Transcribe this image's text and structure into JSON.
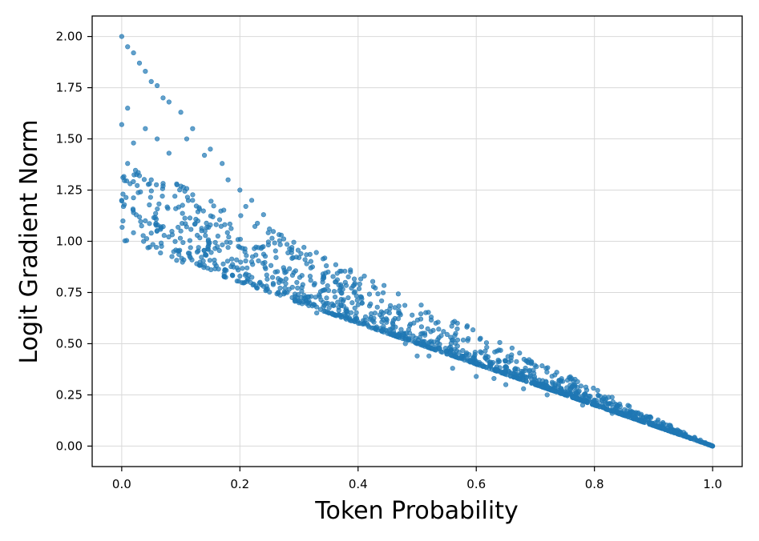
{
  "chart_data": {
    "type": "scatter",
    "title": "",
    "xlabel": "Token Probability",
    "ylabel": "Logit Gradient Norm",
    "xlim": [
      -0.05,
      1.05
    ],
    "ylim": [
      -0.1,
      2.1
    ],
    "xticks": [
      "0.0",
      "0.2",
      "0.4",
      "0.6",
      "0.8",
      "1.0"
    ],
    "yticks": [
      "0.00",
      "0.25",
      "0.50",
      "0.75",
      "1.00",
      "1.25",
      "1.50",
      "1.75",
      "2.00"
    ],
    "grid": true,
    "color": "#1f77b4",
    "series": [
      {
        "description_of_shape": "points lie between the curves y = 1 - p and y = sqrt(2)*(1 - p); densest near the lower bound for large p, forming discrete arcs",
        "points": [
          [
            0.0,
            2.0
          ],
          [
            0.0,
            1.57
          ],
          [
            0.0,
            1.2
          ],
          [
            0.01,
            1.95
          ],
          [
            0.01,
            1.65
          ],
          [
            0.01,
            1.38
          ],
          [
            0.02,
            1.92
          ],
          [
            0.02,
            1.48
          ],
          [
            0.02,
            1.14
          ],
          [
            0.03,
            1.87
          ],
          [
            0.03,
            1.32
          ],
          [
            0.04,
            1.83
          ],
          [
            0.04,
            1.55
          ],
          [
            0.04,
            1.1
          ],
          [
            0.05,
            1.78
          ],
          [
            0.05,
            1.3
          ],
          [
            0.05,
            1.04
          ],
          [
            0.06,
            1.76
          ],
          [
            0.06,
            1.5
          ],
          [
            0.07,
            1.7
          ],
          [
            0.07,
            1.27
          ],
          [
            0.08,
            1.68
          ],
          [
            0.08,
            1.43
          ],
          [
            0.09,
            1.22
          ],
          [
            0.1,
            1.63
          ],
          [
            0.1,
            1.05
          ],
          [
            0.11,
            1.5
          ],
          [
            0.12,
            1.55
          ],
          [
            0.12,
            1.2
          ],
          [
            0.13,
            0.97
          ],
          [
            0.14,
            1.42
          ],
          [
            0.15,
            1.45
          ],
          [
            0.15,
            1.08
          ],
          [
            0.16,
            0.88
          ],
          [
            0.17,
            1.38
          ],
          [
            0.18,
            1.3
          ],
          [
            0.18,
            0.97
          ],
          [
            0.2,
            1.25
          ],
          [
            0.2,
            0.83
          ],
          [
            0.21,
            1.17
          ],
          [
            0.22,
            1.2
          ],
          [
            0.22,
            0.9
          ],
          [
            0.24,
            1.13
          ],
          [
            0.24,
            0.78
          ],
          [
            0.25,
            1.06
          ],
          [
            0.26,
            0.85
          ],
          [
            0.27,
            1.03
          ],
          [
            0.28,
            0.75
          ],
          [
            0.29,
            0.92
          ],
          [
            0.3,
            0.92
          ],
          [
            0.3,
            0.7
          ],
          [
            0.32,
            0.87
          ],
          [
            0.33,
            0.65
          ],
          [
            0.34,
            0.76
          ],
          [
            0.35,
            0.76
          ],
          [
            0.36,
            0.64
          ],
          [
            0.37,
            0.77
          ],
          [
            0.38,
            0.62
          ],
          [
            0.39,
            0.7
          ],
          [
            0.4,
            0.69
          ],
          [
            0.41,
            0.6
          ],
          [
            0.42,
            0.62
          ],
          [
            0.43,
            0.57
          ],
          [
            0.44,
            0.63
          ],
          [
            0.45,
            0.55
          ],
          [
            0.46,
            0.56
          ],
          [
            0.47,
            0.53
          ],
          [
            0.48,
            0.5
          ],
          [
            0.5,
            0.5
          ],
          [
            0.5,
            0.44
          ],
          [
            0.52,
            0.44
          ],
          [
            0.53,
            0.47
          ],
          [
            0.55,
            0.45
          ],
          [
            0.56,
            0.38
          ],
          [
            0.58,
            0.42
          ],
          [
            0.6,
            0.4
          ],
          [
            0.6,
            0.34
          ],
          [
            0.63,
            0.33
          ],
          [
            0.65,
            0.3
          ],
          [
            0.68,
            0.28
          ],
          [
            0.7,
            0.3
          ],
          [
            0.72,
            0.25
          ],
          [
            0.75,
            0.25
          ],
          [
            0.78,
            0.2
          ],
          [
            0.8,
            0.2
          ],
          [
            0.83,
            0.16
          ],
          [
            0.85,
            0.15
          ],
          [
            0.88,
            0.12
          ],
          [
            0.9,
            0.1
          ],
          [
            0.93,
            0.07
          ],
          [
            0.95,
            0.05
          ],
          [
            0.98,
            0.02
          ],
          [
            1.0,
            0.0
          ]
        ]
      }
    ]
  }
}
